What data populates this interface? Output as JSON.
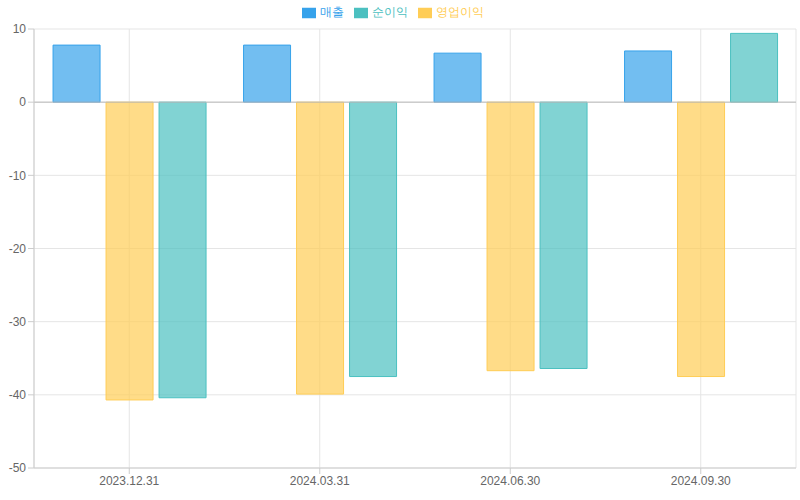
{
  "chart_data": {
    "type": "bar",
    "categories": [
      "2023.12.31",
      "2024.03.31",
      "2024.06.30",
      "2024.09.30"
    ],
    "series": [
      {
        "name": "매출",
        "color": "#36a2eb",
        "values": [
          7.8,
          7.8,
          6.7,
          7.0
        ]
      },
      {
        "name": "영업이익",
        "color": "#ffcd56",
        "values": [
          -40.7,
          -39.9,
          -36.7,
          -37.5
        ]
      },
      {
        "name": "순이익",
        "color": "#4bc0c0",
        "values": [
          -40.4,
          -37.5,
          -36.4,
          9.4
        ]
      }
    ],
    "ylim": [
      -50,
      10
    ],
    "yticks": [
      -50,
      -40,
      -30,
      -20,
      -10,
      0,
      10
    ],
    "grid": true,
    "legend": "top"
  }
}
